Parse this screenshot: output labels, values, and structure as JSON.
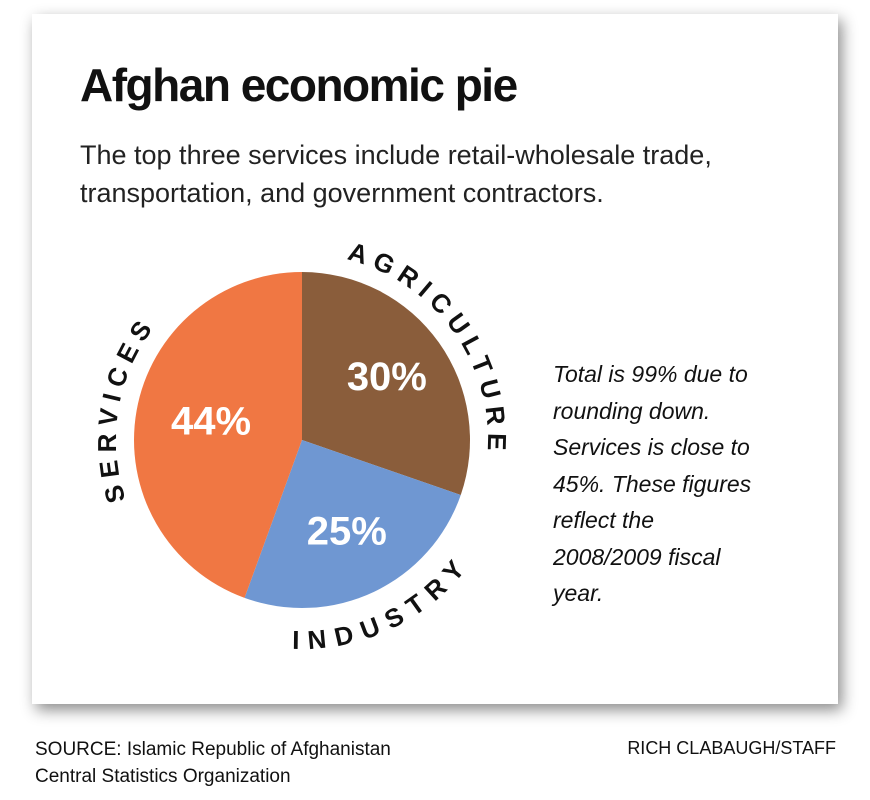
{
  "chart_data": {
    "type": "pie",
    "title": "Afghan economic pie",
    "subtitle": "The top three services include retail-wholesale trade, transportation, and government contractors.",
    "categories": [
      "AGRICULTURE",
      "INDUSTRY",
      "SERVICES"
    ],
    "values": [
      30,
      25,
      44
    ],
    "value_labels": [
      "30%",
      "25%",
      "44%"
    ],
    "colors": [
      "#8a5d3b",
      "#6f97d2",
      "#f07743"
    ],
    "annotation": "Total is 99% due to rounding down. Services is close to 45%. These figures reflect the 2008/2009 fiscal year.",
    "source": "SOURCE: Islamic Republic of Afghanistan Central Statistics Organization",
    "credit": "RICH CLABAUGH/STAFF"
  }
}
